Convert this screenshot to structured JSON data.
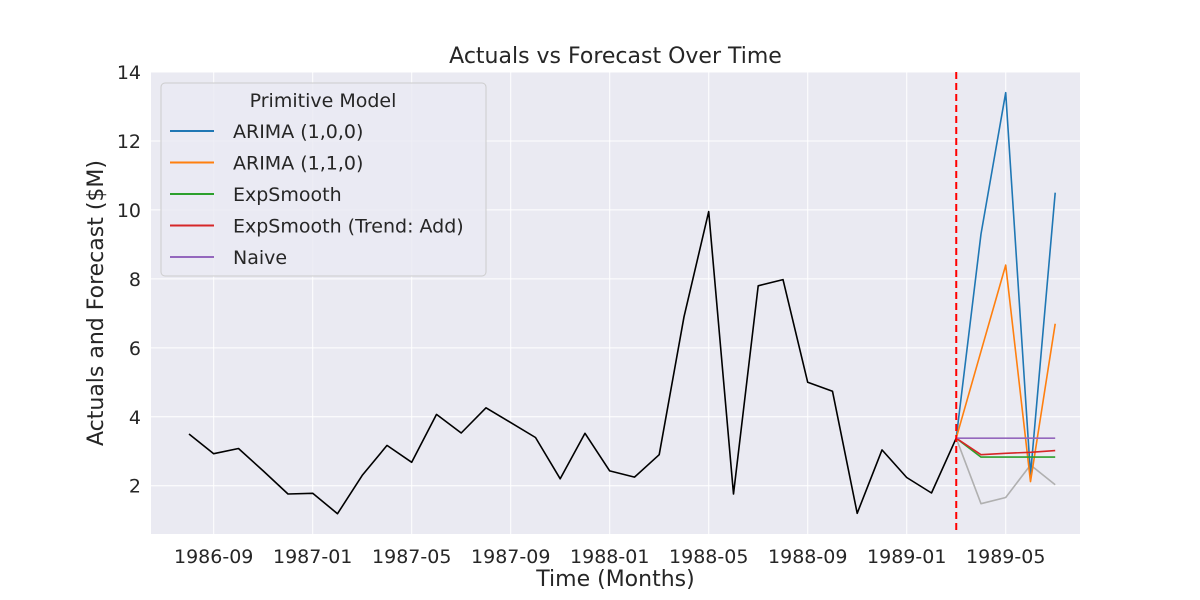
{
  "chart_data": {
    "type": "line",
    "title": "Actuals vs Forecast Over Time",
    "xlabel": "Time (Months)",
    "ylabel": "Actuals and Forecast ($M)",
    "ylim": [
      0.6,
      14
    ],
    "yticks": [
      2,
      4,
      6,
      8,
      10,
      12,
      14
    ],
    "xlim": [
      "1986-06-15",
      "1989-07-31"
    ],
    "xticks": [
      "1986-09",
      "1987-01",
      "1987-05",
      "1987-09",
      "1988-01",
      "1988-05",
      "1988-09",
      "1989-01",
      "1989-05"
    ],
    "grid": true,
    "legend": {
      "title": "Primitive Model",
      "position": "top-left"
    },
    "forecast_start": "1989-03",
    "series": [
      {
        "role": "actuals",
        "color": "#000000",
        "x": [
          "1986-08",
          "1986-09",
          "1986-10",
          "1986-11",
          "1986-12",
          "1987-01",
          "1987-02",
          "1987-03",
          "1987-04",
          "1987-05",
          "1987-06",
          "1987-07",
          "1987-08",
          "1987-09",
          "1987-10",
          "1987-11",
          "1987-12",
          "1988-01",
          "1988-02",
          "1988-03",
          "1988-04",
          "1988-05",
          "1988-06",
          "1988-07",
          "1988-08",
          "1988-09",
          "1988-10",
          "1988-11",
          "1988-12",
          "1989-01",
          "1989-02",
          "1989-03"
        ],
        "y": [
          3.5,
          2.93,
          3.08,
          2.43,
          1.76,
          1.78,
          1.19,
          2.3,
          3.17,
          2.68,
          4.07,
          3.53,
          4.26,
          3.83,
          3.4,
          2.2,
          3.52,
          2.43,
          2.25,
          2.9,
          6.9,
          9.95,
          1.76,
          7.8,
          7.98,
          5.0,
          4.74,
          1.2,
          3.04,
          2.24,
          1.79,
          3.38
        ]
      },
      {
        "role": "holdout",
        "color": "#b0b0b0",
        "x": [
          "1989-03",
          "1989-04",
          "1989-05",
          "1989-06",
          "1989-07"
        ],
        "y": [
          3.38,
          1.48,
          1.66,
          2.6,
          2.03
        ]
      },
      {
        "name": "ARIMA (1,0,0)",
        "color": "#1f77b4",
        "x": [
          "1989-03",
          "1989-04",
          "1989-05",
          "1989-06",
          "1989-07"
        ],
        "y": [
          3.38,
          9.3,
          13.4,
          2.32,
          10.5
        ]
      },
      {
        "name": "ARIMA (1,1,0)",
        "color": "#ff7f0e",
        "x": [
          "1989-03",
          "1989-04",
          "1989-05",
          "1989-06",
          "1989-07"
        ],
        "y": [
          3.38,
          5.9,
          8.4,
          2.12,
          6.7
        ]
      },
      {
        "name": "ExpSmooth",
        "color": "#2ca02c",
        "x": [
          "1989-03",
          "1989-04",
          "1989-05",
          "1989-06",
          "1989-07"
        ],
        "y": [
          3.38,
          2.83,
          2.83,
          2.83,
          2.83
        ]
      },
      {
        "name": "ExpSmooth (Trend: Add)",
        "color": "#d62728",
        "x": [
          "1989-03",
          "1989-04",
          "1989-05",
          "1989-06",
          "1989-07"
        ],
        "y": [
          3.38,
          2.9,
          2.94,
          2.97,
          3.02
        ]
      },
      {
        "name": "Naive",
        "color": "#9467bd",
        "x": [
          "1989-03",
          "1989-04",
          "1989-05",
          "1989-06",
          "1989-07"
        ],
        "y": [
          3.38,
          3.38,
          3.38,
          3.38,
          3.38
        ]
      }
    ]
  },
  "colors": {
    "plot_background": "#eaeaf2",
    "grid": "#ffffff",
    "forecast_line": "#ff0000"
  }
}
